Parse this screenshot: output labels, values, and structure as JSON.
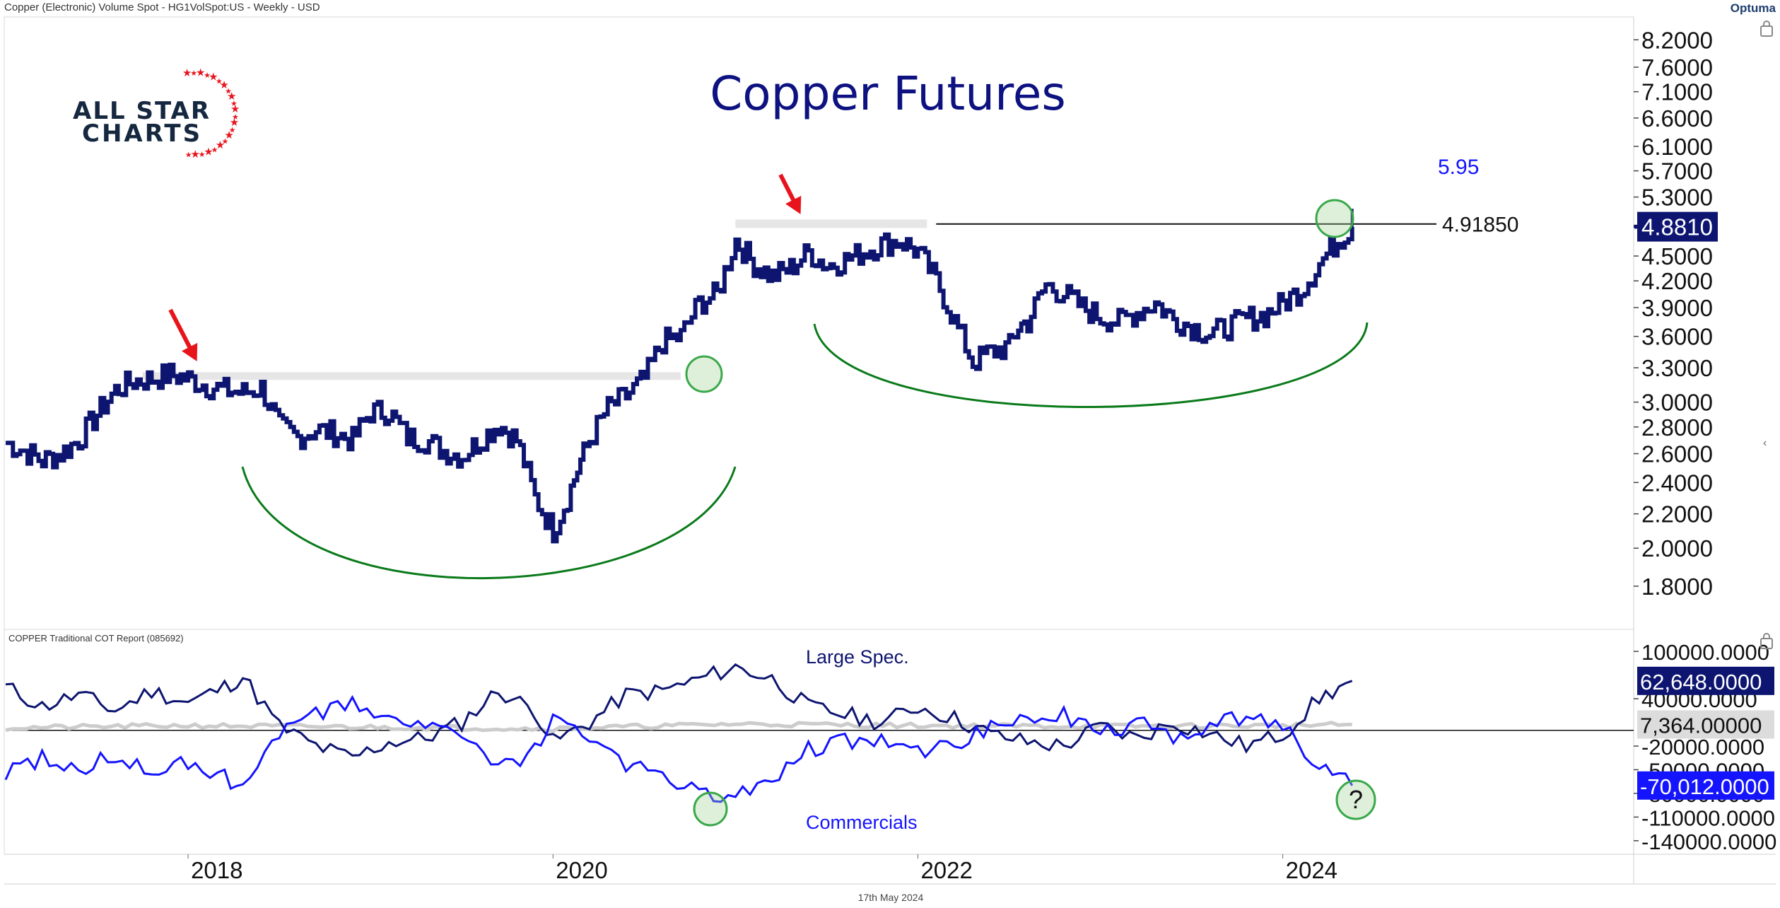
{
  "header": {
    "instrument": "Copper (Electronic) Volume Spot - HG1VolSpot:US - Weekly - USD",
    "brand": "Optuma"
  },
  "logo": {
    "line1": "ALL STAR",
    "line2": "CHARTS"
  },
  "footer": {
    "date": "17th May 2024"
  },
  "colors": {
    "price": "#0d1570",
    "large_spec": "#0d1570",
    "commercials": "#1414ff",
    "small_spec": "#cccccc",
    "annotation_green": "#0a7a1a",
    "arrow_red": "#e8141c",
    "title": "#0d1280"
  },
  "chart_data": [
    {
      "type": "line",
      "title": "Copper Futures",
      "y_scale": "log",
      "ylim": [
        1.7,
        8.4
      ],
      "xlim": [
        2017.0,
        2025.9
      ],
      "y_ticks": [
        "8.2000",
        "7.6000",
        "7.1000",
        "6.6000",
        "6.1000",
        "5.7000",
        "5.3000",
        "4.9000",
        "4.5000",
        "4.2000",
        "3.9000",
        "3.6000",
        "3.3000",
        "3.0000",
        "2.8000",
        "2.6000",
        "2.4000",
        "2.2000",
        "2.0000",
        "1.8000"
      ],
      "x_ticks": [
        "2018",
        "2020",
        "2022",
        "2024"
      ],
      "last_price_label": "4.8810",
      "last_price_value": 4.881,
      "resistance_label": "4.91850",
      "resistance_value": 4.9185,
      "target_label": "5.95",
      "series": [
        {
          "x": [
            2017.0,
            2017.1,
            2017.2,
            2017.3,
            2017.4,
            2017.5,
            2017.6,
            2017.7,
            2017.8,
            2017.9,
            2018.0,
            2018.1,
            2018.2,
            2018.3,
            2018.4,
            2018.5,
            2018.6,
            2018.7,
            2018.8,
            2018.9,
            2019.0,
            2019.1,
            2019.2,
            2019.3,
            2019.4,
            2019.5,
            2019.6,
            2019.7,
            2019.8,
            2019.9,
            2020.0,
            2020.08,
            2020.15,
            2020.2,
            2020.3,
            2020.4,
            2020.5,
            2020.6,
            2020.7,
            2020.8,
            2020.9,
            2021.0,
            2021.1,
            2021.2,
            2021.3,
            2021.4,
            2021.5,
            2021.6,
            2021.7,
            2021.8,
            2021.9,
            2022.0,
            2022.1,
            2022.2,
            2022.3,
            2022.4,
            2022.5,
            2022.55,
            2022.6,
            2022.7,
            2022.8,
            2022.9,
            2023.0,
            2023.1,
            2023.2,
            2023.3,
            2023.4,
            2023.5,
            2023.6,
            2023.7,
            2023.8,
            2023.9,
            2024.0,
            2024.1,
            2024.2,
            2024.3,
            2024.38
          ],
          "y": [
            2.68,
            2.62,
            2.55,
            2.6,
            2.7,
            2.9,
            3.1,
            3.18,
            3.2,
            3.24,
            3.2,
            3.14,
            3.1,
            3.08,
            3.12,
            2.8,
            2.72,
            2.78,
            2.75,
            2.7,
            2.92,
            2.92,
            2.72,
            2.7,
            2.62,
            2.58,
            2.7,
            2.82,
            2.7,
            2.3,
            2.1,
            2.3,
            2.55,
            2.7,
            2.95,
            3.05,
            3.2,
            3.55,
            3.6,
            3.95,
            4.05,
            4.7,
            4.4,
            4.25,
            4.35,
            4.55,
            4.38,
            4.45,
            4.55,
            4.65,
            4.7,
            4.55,
            4.2,
            3.75,
            3.35,
            3.45,
            3.5,
            3.7,
            3.75,
            4.15,
            4.05,
            3.9,
            3.8,
            3.75,
            3.85,
            3.95,
            3.78,
            3.7,
            3.62,
            3.7,
            3.78,
            3.82,
            3.95,
            4.1,
            4.4,
            4.7,
            4.88
          ]
        }
      ],
      "annotations": [
        "red arrow at 2018 peak",
        "red arrow at 2021 peak",
        "rounded base 2018-2021",
        "rounded base 2021-2024"
      ]
    },
    {
      "type": "line",
      "title": "COPPER Traditional COT Report (085692)",
      "ylim": [
        -150000,
        110000
      ],
      "y_ticks": [
        "100000.0000",
        "40000.0000",
        "-20000.0000",
        "-50000.0000",
        "-80000.0000",
        "-110000.0000",
        "-140000.0000"
      ],
      "zero_line": 0,
      "last_values": [
        "62,648.0000",
        "7,364.00000",
        "-70,012.0000"
      ],
      "series": [
        {
          "name": "Large Spec.",
          "x": [
            2017.0,
            2017.2,
            2017.4,
            2017.6,
            2017.8,
            2018.0,
            2018.2,
            2018.3,
            2018.5,
            2018.7,
            2018.9,
            2019.1,
            2019.3,
            2019.5,
            2019.7,
            2019.9,
            2020.0,
            2020.2,
            2020.4,
            2020.6,
            2020.8,
            2021.0,
            2021.2,
            2021.4,
            2021.6,
            2021.8,
            2022.0,
            2022.2,
            2022.4,
            2022.6,
            2022.8,
            2023.0,
            2023.2,
            2023.4,
            2023.6,
            2023.8,
            2024.0,
            2024.2,
            2024.38
          ],
          "y": [
            55000,
            30000,
            45000,
            25000,
            50000,
            35000,
            55000,
            68000,
            5000,
            -20000,
            -35000,
            -15000,
            -10000,
            10000,
            50000,
            25000,
            -15000,
            10000,
            45000,
            50000,
            65000,
            80000,
            65000,
            30000,
            20000,
            10000,
            30000,
            15000,
            -5000,
            -15000,
            -20000,
            5000,
            -10000,
            10000,
            -5000,
            -20000,
            -5000,
            40000,
            62648
          ]
        },
        {
          "name": "Commercials",
          "x": [
            2017.0,
            2017.2,
            2017.4,
            2017.6,
            2017.8,
            2018.0,
            2018.2,
            2018.3,
            2018.5,
            2018.7,
            2018.9,
            2019.1,
            2019.3,
            2019.5,
            2019.7,
            2019.9,
            2020.0,
            2020.2,
            2020.4,
            2020.6,
            2020.8,
            2021.0,
            2021.2,
            2021.4,
            2021.6,
            2021.8,
            2022.0,
            2022.2,
            2022.4,
            2022.6,
            2022.8,
            2023.0,
            2023.2,
            2023.4,
            2023.6,
            2023.8,
            2024.0,
            2024.2,
            2024.38
          ],
          "y": [
            -55000,
            -35000,
            -50000,
            -30000,
            -55000,
            -40000,
            -60000,
            -70000,
            -5000,
            20000,
            35000,
            15000,
            10000,
            -10000,
            -50000,
            -25000,
            15000,
            -10000,
            -45000,
            -55000,
            -80000,
            -85000,
            -60000,
            -25000,
            -15000,
            -10000,
            -30000,
            -20000,
            5000,
            15000,
            20000,
            -5000,
            10000,
            -10000,
            5000,
            20000,
            5000,
            -45000,
            -70012
          ]
        },
        {
          "name": "Small Spec.",
          "x": [
            2017.0,
            2018.0,
            2019.0,
            2020.0,
            2021.0,
            2022.0,
            2023.0,
            2024.0,
            2024.38
          ],
          "y": [
            3000,
            6000,
            4000,
            2000,
            8000,
            6000,
            5000,
            6000,
            7364
          ]
        }
      ],
      "annotations": [
        "Large Spec.",
        "Commercials",
        "?"
      ]
    }
  ],
  "x_axis": {
    "labels": [
      "2018",
      "2020",
      "2022",
      "2024"
    ]
  }
}
